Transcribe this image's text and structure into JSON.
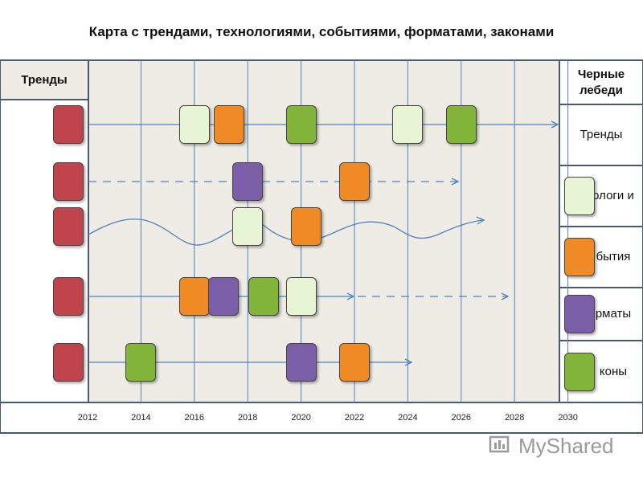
{
  "title": "Карта с трендами, технологиями, событиями, форматами, законами",
  "left_header": "Тренды",
  "right_header": "Черные лебеди",
  "legend": [
    {
      "label": "Тренды",
      "swatch": ""
    },
    {
      "label": "ологи и",
      "swatch": "tech"
    },
    {
      "label": "бытия",
      "swatch": "event"
    },
    {
      "label": "рматы",
      "swatch": "format"
    },
    {
      "label": "коны",
      "swatch": "law"
    }
  ],
  "years": [
    "2012",
    "2014",
    "2016",
    "2018",
    "2020",
    "2022",
    "2024",
    "2026",
    "2028",
    "2030"
  ],
  "colors": {
    "trend": "#c0444c",
    "tech": "#e8f5d4",
    "event": "#f08a24",
    "format": "#7a5ea8",
    "law": "#82b53a",
    "line": "#4f81bd",
    "bg": "#eeece4"
  },
  "watermark": "MyShared",
  "nodes": [
    {
      "row": 0,
      "year": 2016,
      "kind": "tech"
    },
    {
      "row": 0,
      "year": 2017.3,
      "kind": "event"
    },
    {
      "row": 0,
      "year": 2020,
      "kind": "law"
    },
    {
      "row": 0,
      "year": 2024,
      "kind": "tech"
    },
    {
      "row": 0,
      "year": 2026,
      "kind": "law"
    },
    {
      "row": 1,
      "year": 2018,
      "kind": "format"
    },
    {
      "row": 1,
      "year": 2022,
      "kind": "event"
    },
    {
      "row": 2,
      "year": 2018,
      "kind": "tech"
    },
    {
      "row": 2,
      "year": 2020.2,
      "kind": "event"
    },
    {
      "row": 3,
      "year": 2016,
      "kind": "event"
    },
    {
      "row": 3,
      "year": 2017.1,
      "kind": "format"
    },
    {
      "row": 3,
      "year": 2018.6,
      "kind": "law"
    },
    {
      "row": 3,
      "year": 2020,
      "kind": "tech"
    },
    {
      "row": 4,
      "year": 2014,
      "kind": "law"
    },
    {
      "row": 4,
      "year": 2020,
      "kind": "format"
    },
    {
      "row": 4,
      "year": 2022,
      "kind": "event"
    }
  ]
}
